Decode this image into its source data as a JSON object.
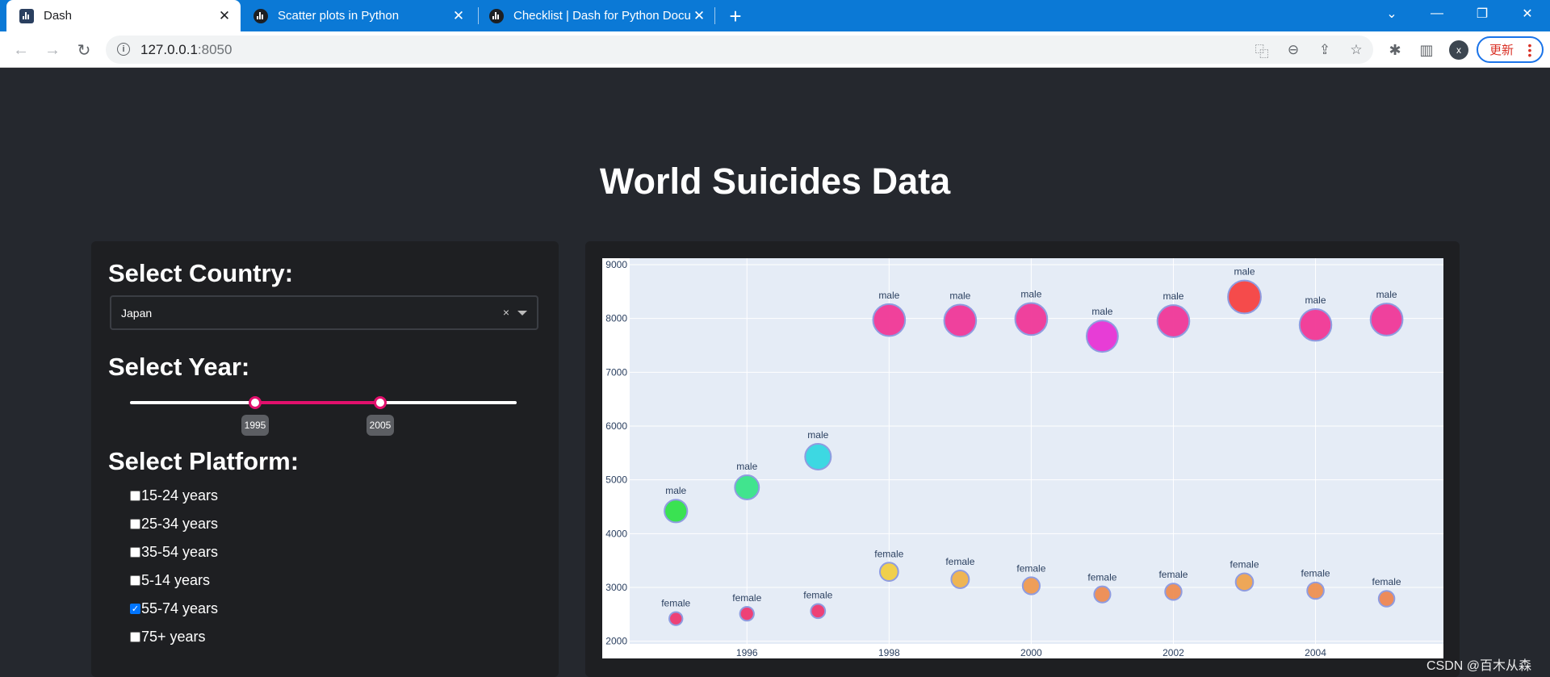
{
  "browser": {
    "tabs": [
      {
        "title": "Dash",
        "active": true
      },
      {
        "title": "Scatter plots in Python",
        "active": false
      },
      {
        "title": "Checklist | Dash for Python Docu",
        "active": false
      }
    ],
    "url_host": "127.0.0.1",
    "url_port": ":8050",
    "profile_initial": "x",
    "update_label": "更新"
  },
  "app": {
    "title": "World Suicides Data",
    "country_label": "Select Country:",
    "country_value": "Japan",
    "year_label": "Select Year:",
    "year_range": {
      "min": 1985,
      "max": 2016,
      "start": 1995,
      "end": 2005
    },
    "year_start_label": "1995",
    "year_end_label": "2005",
    "platform_label": "Select Platform:",
    "platforms": [
      {
        "label": "15-24 years",
        "checked": false
      },
      {
        "label": "25-34 years",
        "checked": false
      },
      {
        "label": "35-54 years",
        "checked": false
      },
      {
        "label": "5-14 years",
        "checked": false
      },
      {
        "label": "55-74 years",
        "checked": true
      },
      {
        "label": "75+ years",
        "checked": false
      }
    ]
  },
  "chart_data": {
    "type": "scatter",
    "title": "",
    "xlabel": "",
    "ylabel": "",
    "xlim": [
      1994.35,
      2005.8
    ],
    "ylim": [
      1950,
      9120
    ],
    "x_ticks": [
      1996,
      1998,
      2000,
      2002,
      2004
    ],
    "y_ticks": [
      2000,
      3000,
      4000,
      5000,
      6000,
      7000,
      8000,
      9000
    ],
    "x_tick_labels": [
      "1996",
      "1998",
      "2000",
      "2002",
      "2004"
    ],
    "y_tick_labels": [
      "2000",
      "3000",
      "4000",
      "5000",
      "6000",
      "7000",
      "8000",
      "9000"
    ],
    "grid": true,
    "color_scale": [
      "#2fe84a",
      "#4ee8a0",
      "#3ddde8",
      "#e83ad6",
      "#f53f9f",
      "#f7468a",
      "#fb4a4a"
    ],
    "series": [
      {
        "name": "male",
        "x": [
          1995,
          1996,
          1997,
          1998,
          1999,
          2000,
          2001,
          2002,
          2003,
          2004,
          2005
        ],
        "y": [
          4420,
          4860,
          5430,
          7970,
          7960,
          7990,
          7670,
          7950,
          8400,
          7880,
          7980
        ],
        "labels": [
          "male",
          "male",
          "male",
          "male",
          "male",
          "male",
          "male",
          "male",
          "male",
          "male",
          "male"
        ],
        "colors": [
          "#37e24f",
          "#3ee48c",
          "#3ad8e2",
          "#f13e9a",
          "#f03e9c",
          "#f03e9c",
          "#e83ad6",
          "#f03e9c",
          "#f64848",
          "#f23e99",
          "#f03e9c"
        ]
      },
      {
        "name": "female",
        "x": [
          1995,
          1996,
          1997,
          1998,
          1999,
          2000,
          2001,
          2002,
          2003,
          2004,
          2005
        ],
        "y": [
          2420,
          2510,
          2560,
          3290,
          3150,
          3030,
          2870,
          2920,
          3100,
          2940,
          2790
        ],
        "labels": [
          "female",
          "female",
          "female",
          "female",
          "female",
          "female",
          "female",
          "female",
          "female",
          "female",
          "female"
        ],
        "colors": [
          "#ee3e74",
          "#ee3e74",
          "#ee3e74",
          "#f1cf49",
          "#efb451",
          "#ef9d56",
          "#ee9057",
          "#ee9057",
          "#efa655",
          "#ee9457",
          "#ee8a58"
        ]
      }
    ]
  },
  "watermark": "CSDN @百木从森"
}
